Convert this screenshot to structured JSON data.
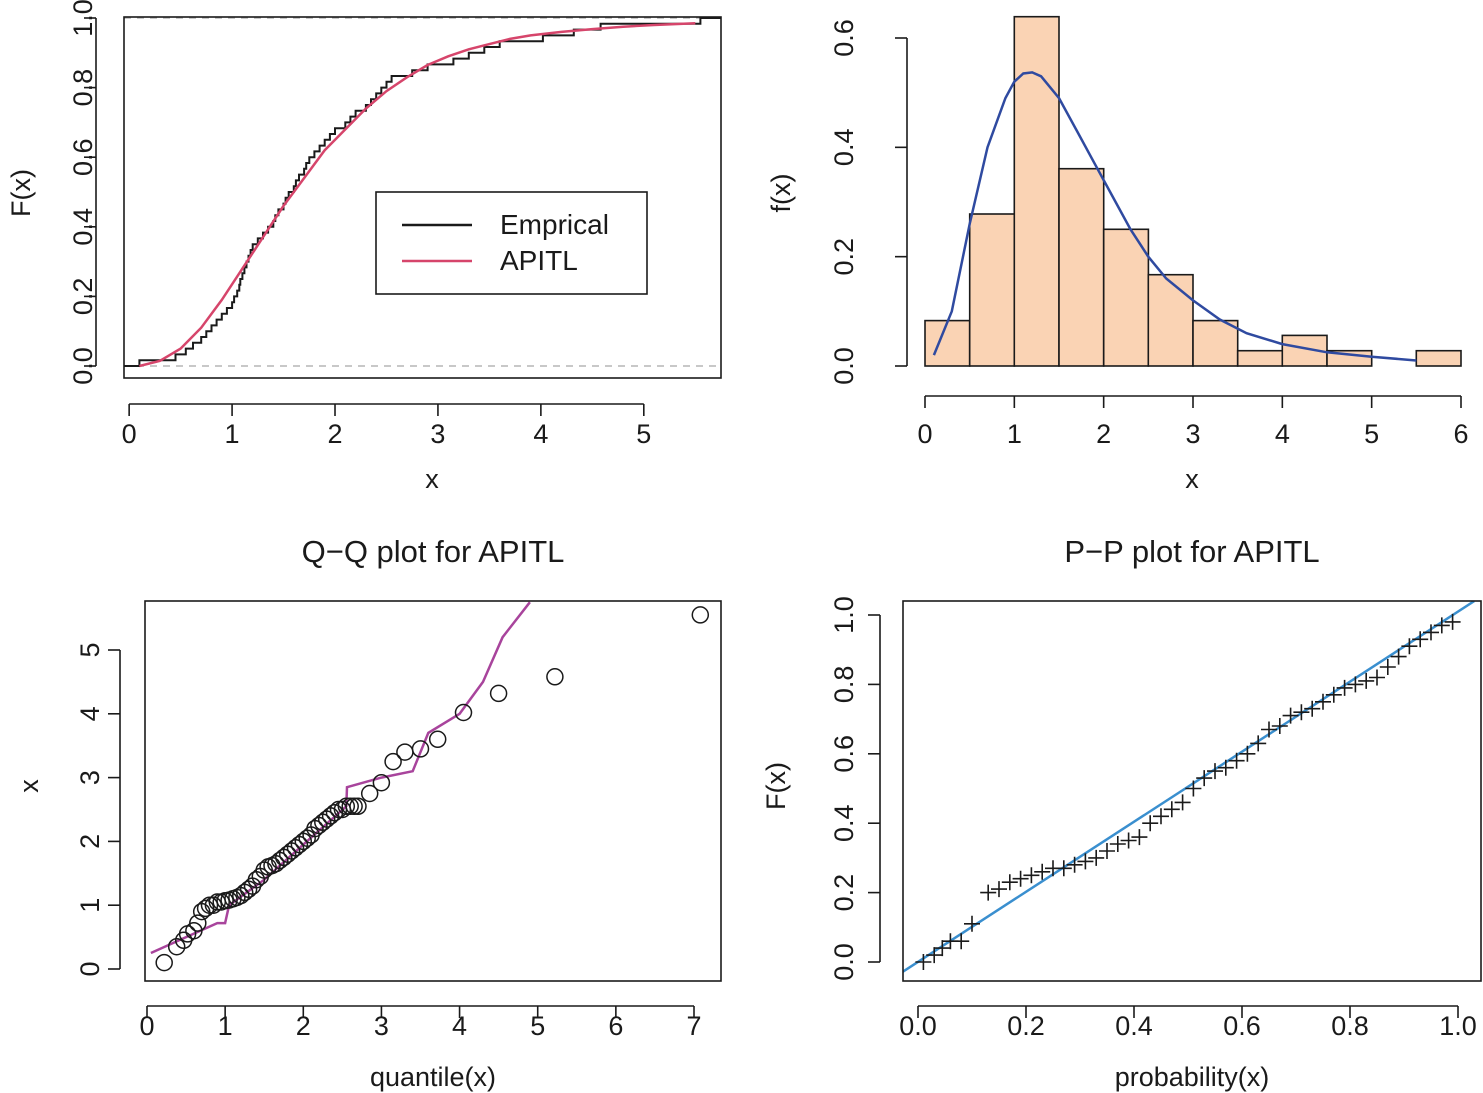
{
  "colors": {
    "ecdf": "#1a1a1a",
    "apitl_cdf": "#d6456b",
    "hist_fill": "#fad3b4",
    "hist_edge": "#1a1a1a",
    "density": "#2f4aa0",
    "qq_line": "#a8449c",
    "pp_line": "#3a8fcf",
    "ref_dash": "#b5b5b5"
  },
  "chart_data": [
    {
      "id": "cdf",
      "type": "line",
      "title": "",
      "xlabel": "x",
      "ylabel": "F(x)",
      "xlim": [
        -0.05,
        5.75
      ],
      "ylim": [
        -0.01,
        1.0
      ],
      "xticks": [
        0,
        1,
        2,
        3,
        4,
        5
      ],
      "yticks": [
        0.0,
        0.2,
        0.4,
        0.6,
        0.8,
        1.0
      ],
      "ytick_labels": [
        "0.0",
        "0.2",
        "0.4",
        "0.6",
        "0.8",
        "1.0"
      ],
      "legend": {
        "position": "center-right",
        "entries": [
          {
            "label": "Emprical",
            "color_key": "ecdf"
          },
          {
            "label": "APITL",
            "color_key": "apitl_cdf"
          }
        ]
      },
      "sample": [
        0.1,
        0.45,
        0.55,
        0.62,
        0.7,
        0.75,
        0.8,
        0.85,
        0.9,
        0.95,
        1.0,
        1.02,
        1.05,
        1.07,
        1.08,
        1.1,
        1.12,
        1.14,
        1.16,
        1.18,
        1.2,
        1.25,
        1.3,
        1.35,
        1.4,
        1.42,
        1.45,
        1.5,
        1.52,
        1.55,
        1.6,
        1.62,
        1.65,
        1.7,
        1.72,
        1.75,
        1.8,
        1.85,
        1.9,
        1.95,
        2.0,
        2.1,
        2.15,
        2.2,
        2.3,
        2.35,
        2.4,
        2.45,
        2.5,
        2.55,
        2.75,
        2.9,
        3.15,
        3.3,
        3.45,
        3.6,
        4.02,
        4.32,
        4.58,
        5.55
      ],
      "model_cdf": {
        "name": "APITL",
        "x": [
          0.1,
          0.3,
          0.5,
          0.7,
          0.9,
          1.1,
          1.3,
          1.5,
          1.7,
          1.9,
          2.1,
          2.3,
          2.5,
          2.7,
          2.9,
          3.1,
          3.3,
          3.5,
          3.7,
          3.9,
          4.2,
          4.5,
          4.8,
          5.1,
          5.5
        ],
        "y": [
          0.0,
          0.015,
          0.05,
          0.11,
          0.19,
          0.28,
          0.37,
          0.46,
          0.54,
          0.62,
          0.68,
          0.74,
          0.79,
          0.83,
          0.865,
          0.89,
          0.91,
          0.925,
          0.94,
          0.95,
          0.96,
          0.968,
          0.975,
          0.98,
          0.985
        ]
      }
    },
    {
      "id": "hist",
      "type": "bar",
      "title": "",
      "xlabel": "x",
      "ylabel": "f(x)",
      "xlim": [
        0,
        6
      ],
      "ylim": [
        0,
        0.6
      ],
      "xticks": [
        0,
        1,
        2,
        3,
        4,
        5,
        6
      ],
      "yticks": [
        0.0,
        0.2,
        0.4,
        0.6
      ],
      "ytick_labels": [
        "0.0",
        "0.2",
        "0.4",
        "0.6"
      ],
      "bin_edges": [
        0,
        0.5,
        1.0,
        1.5,
        2.0,
        2.5,
        3.0,
        3.5,
        4.0,
        4.5,
        5.0,
        5.5,
        6.0
      ],
      "density_values": [
        0.083,
        0.278,
        0.639,
        0.361,
        0.25,
        0.167,
        0.083,
        0.028,
        0.056,
        0.028,
        0.0,
        0.028
      ],
      "density_curve": {
        "name": "APITL",
        "x": [
          0.1,
          0.3,
          0.5,
          0.7,
          0.9,
          1.0,
          1.1,
          1.2,
          1.3,
          1.5,
          1.7,
          1.9,
          2.1,
          2.3,
          2.5,
          2.7,
          3.0,
          3.3,
          3.6,
          4.0,
          4.5,
          5.0,
          5.5
        ],
        "y": [
          0.02,
          0.1,
          0.26,
          0.4,
          0.49,
          0.52,
          0.535,
          0.537,
          0.53,
          0.49,
          0.43,
          0.37,
          0.31,
          0.25,
          0.2,
          0.16,
          0.12,
          0.085,
          0.06,
          0.04,
          0.025,
          0.017,
          0.01
        ]
      }
    },
    {
      "id": "qq",
      "type": "scatter",
      "title": "Q−Q plot for  APITL",
      "xlabel": "quantile(x)",
      "ylabel": "x",
      "xlim": [
        0.05,
        7.4
      ],
      "ylim": [
        -0.05,
        5.75
      ],
      "xticks": [
        0,
        1,
        2,
        3,
        4,
        5,
        6,
        7
      ],
      "yticks": [
        0,
        1,
        2,
        3,
        4,
        5
      ],
      "points": {
        "x": [
          0.22,
          0.38,
          0.47,
          0.52,
          0.6,
          0.65,
          0.7,
          0.75,
          0.8,
          0.85,
          0.9,
          0.95,
          1.0,
          1.05,
          1.1,
          1.15,
          1.2,
          1.25,
          1.3,
          1.35,
          1.4,
          1.45,
          1.5,
          1.55,
          1.6,
          1.65,
          1.7,
          1.75,
          1.8,
          1.85,
          1.9,
          1.95,
          2.0,
          2.05,
          2.1,
          2.15,
          2.2,
          2.25,
          2.3,
          2.35,
          2.4,
          2.45,
          2.5,
          2.55,
          2.6,
          2.65,
          2.7,
          2.85,
          3.0,
          3.15,
          3.3,
          3.5,
          3.72,
          4.05,
          4.5,
          5.22,
          7.08
        ],
        "y": [
          0.1,
          0.35,
          0.45,
          0.55,
          0.6,
          0.72,
          0.9,
          0.95,
          1.0,
          1.0,
          1.05,
          1.05,
          1.07,
          1.08,
          1.1,
          1.12,
          1.15,
          1.2,
          1.25,
          1.3,
          1.4,
          1.45,
          1.55,
          1.6,
          1.62,
          1.65,
          1.7,
          1.75,
          1.8,
          1.85,
          1.9,
          1.95,
          2.0,
          2.05,
          2.1,
          2.2,
          2.25,
          2.3,
          2.35,
          2.4,
          2.45,
          2.5,
          2.5,
          2.55,
          2.55,
          2.55,
          2.55,
          2.75,
          2.92,
          3.25,
          3.4,
          3.45,
          3.6,
          4.02,
          4.32,
          4.58,
          5.55
        ]
      },
      "reference_line": {
        "x": [
          0.05,
          0.5,
          0.9,
          1.0,
          1.05,
          1.5,
          2.0,
          2.55,
          2.56,
          3.0,
          3.4,
          3.6,
          4.0,
          4.3,
          4.55,
          4.9
        ],
        "y": [
          0.25,
          0.5,
          0.72,
          0.72,
          1.0,
          1.4,
          1.95,
          2.55,
          2.85,
          3.0,
          3.1,
          3.7,
          4.0,
          4.5,
          5.2,
          5.75
        ]
      }
    },
    {
      "id": "pp",
      "type": "scatter",
      "title": "P−P plot for  APITL",
      "xlabel": "probability(x)",
      "ylabel": "F(x)",
      "xlim": [
        -0.03,
        1.03
      ],
      "ylim": [
        -0.03,
        1.04
      ],
      "xticks": [
        0.0,
        0.2,
        0.4,
        0.6,
        0.8,
        1.0
      ],
      "xtick_labels": [
        "0.0",
        "0.2",
        "0.4",
        "0.6",
        "0.8",
        "1.0"
      ],
      "yticks": [
        0.0,
        0.2,
        0.4,
        0.6,
        0.8,
        1.0
      ],
      "ytick_labels": [
        "0.0",
        "0.2",
        "0.4",
        "0.6",
        "0.8",
        "1.0"
      ],
      "points": {
        "x": [
          0.01,
          0.03,
          0.045,
          0.06,
          0.08,
          0.1,
          0.13,
          0.15,
          0.17,
          0.19,
          0.21,
          0.23,
          0.25,
          0.27,
          0.29,
          0.31,
          0.33,
          0.35,
          0.37,
          0.39,
          0.41,
          0.43,
          0.45,
          0.47,
          0.49,
          0.51,
          0.53,
          0.55,
          0.57,
          0.59,
          0.61,
          0.63,
          0.65,
          0.67,
          0.69,
          0.71,
          0.73,
          0.75,
          0.77,
          0.79,
          0.81,
          0.83,
          0.85,
          0.87,
          0.89,
          0.91,
          0.93,
          0.95,
          0.97,
          0.99
        ],
        "y": [
          0.0,
          0.02,
          0.04,
          0.06,
          0.06,
          0.11,
          0.2,
          0.21,
          0.23,
          0.24,
          0.25,
          0.26,
          0.27,
          0.27,
          0.28,
          0.29,
          0.3,
          0.32,
          0.34,
          0.35,
          0.36,
          0.4,
          0.42,
          0.44,
          0.46,
          0.5,
          0.53,
          0.55,
          0.56,
          0.58,
          0.6,
          0.63,
          0.67,
          0.68,
          0.71,
          0.72,
          0.73,
          0.75,
          0.77,
          0.79,
          0.8,
          0.81,
          0.82,
          0.85,
          0.88,
          0.91,
          0.93,
          0.95,
          0.97,
          0.98
        ]
      },
      "reference_line": {
        "x": [
          -0.03,
          1.03
        ],
        "y": [
          -0.03,
          1.04
        ]
      }
    }
  ]
}
